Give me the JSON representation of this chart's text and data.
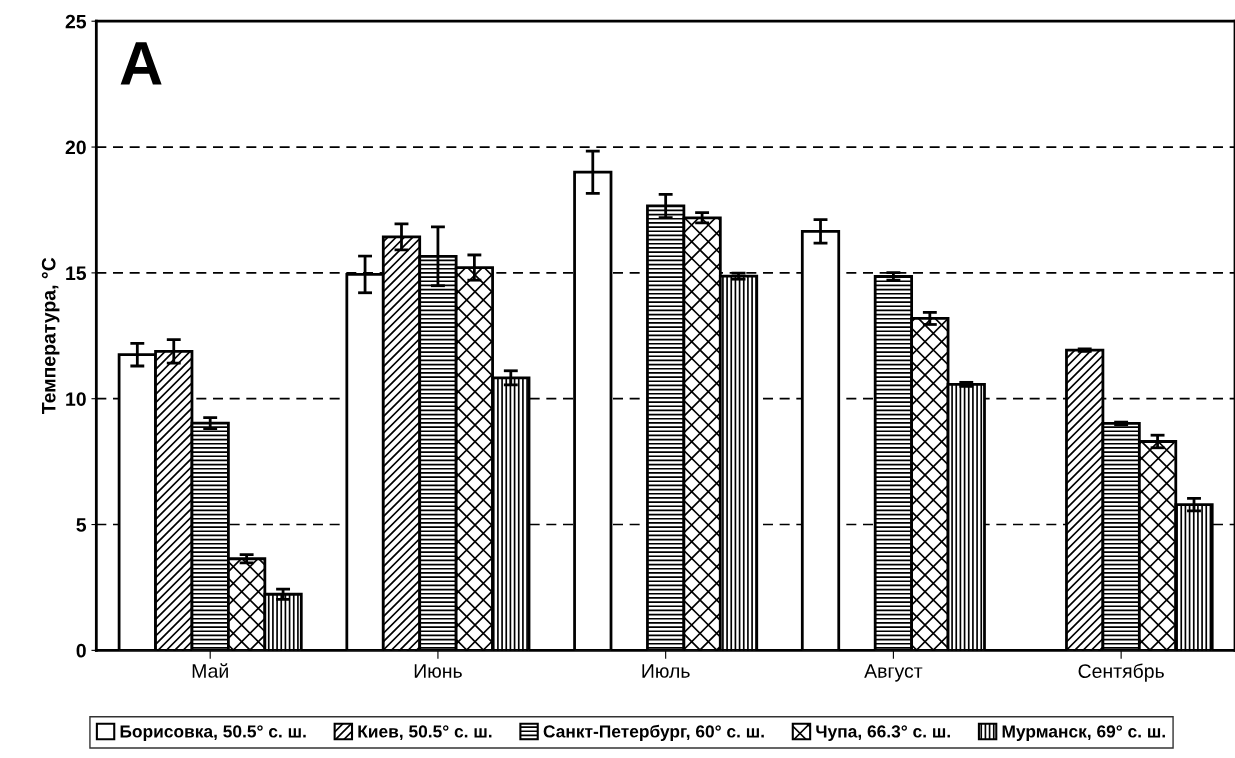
{
  "chart_data": {
    "type": "bar",
    "categories": [
      "Май",
      "Июнь",
      "Июль",
      "Август",
      "Сентябрь"
    ],
    "ylabel": "Температура, °C",
    "annotations": [
      "A"
    ],
    "ylim": [
      0,
      25
    ],
    "yticks": [
      0,
      5,
      10,
      15,
      20,
      25
    ],
    "grid": "y",
    "legend": "bottom",
    "series": [
      {
        "name": "Борисовка, 50.5° с. ш.",
        "color": "#ffffff",
        "values": [
          11.75,
          14.94,
          19.0,
          16.65,
          null
        ],
        "errors": [
          0.45,
          0.73,
          0.84,
          0.47,
          null
        ]
      },
      {
        "name": "Киев, 50.5° с. ш.",
        "color": "#000000",
        "values": [
          11.88,
          16.43,
          null,
          null,
          11.93
        ],
        "errors": [
          0.47,
          0.52,
          null,
          null,
          0.05
        ]
      },
      {
        "name": "Санкт-Петербург, 60° с. ш.",
        "color": "#000000",
        "values": [
          9.03,
          15.66,
          17.66,
          14.86,
          9.02
        ],
        "errors": [
          0.22,
          1.17,
          0.46,
          0.15,
          0.05
        ]
      },
      {
        "name": "Чупа, 66.3° с. ш.",
        "color": "#000000",
        "values": [
          3.64,
          15.21,
          17.19,
          13.19,
          8.3
        ],
        "errors": [
          0.16,
          0.5,
          0.2,
          0.24,
          0.25
        ]
      },
      {
        "name": "Мурманск, 69° с. ш.",
        "color": "#000000",
        "values": [
          2.23,
          10.83,
          14.87,
          10.57,
          5.79
        ],
        "errors": [
          0.2,
          0.28,
          0.12,
          0.08,
          0.25
        ]
      }
    ]
  }
}
